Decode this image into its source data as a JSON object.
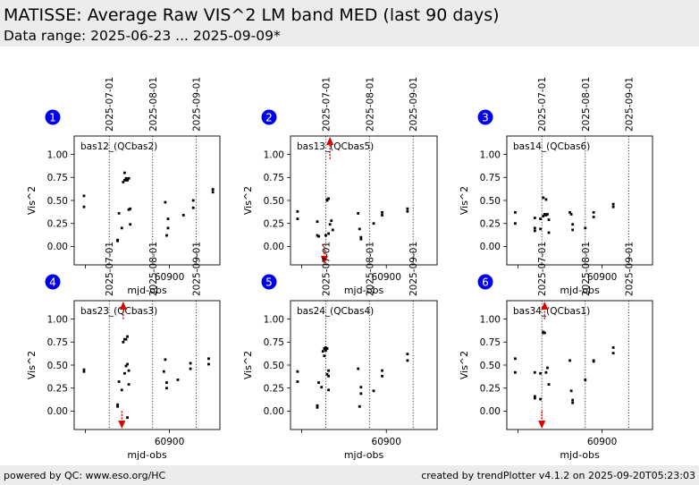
{
  "header": {
    "title": "MATISSE: Average Raw VIS^2 LM band MED (last 90 days)",
    "subtitle": "Data range: 2025-06-23 ... 2025-09-09*"
  },
  "footer": {
    "left": "powered by QC: www.eso.org/HC",
    "right": "created by trendPlotter v4.1.2 on 2025-09-20T05:23:03"
  },
  "colors": {
    "marker": "#0000ee",
    "point": "#000000",
    "arrow": "#dd0000",
    "background": "#ffffff",
    "band": "#ececec"
  },
  "chart_data": [
    {
      "type": "scatter",
      "panel_number": "1",
      "label": "bas12_(QCbas2)",
      "xlabel": "mjd-obs",
      "ylabel": "Vis^2",
      "xlim": [
        60832,
        60936
      ],
      "ylim": [
        -0.2,
        1.2
      ],
      "xticks": [
        60900
      ],
      "yticks": [
        0.0,
        0.25,
        0.5,
        0.75,
        1.0
      ],
      "yticklabels": [
        "0.00",
        "0.25",
        "0.50",
        "0.75",
        "1.00"
      ],
      "date_markers": [
        {
          "x": 60857,
          "label": "2025-07-01"
        },
        {
          "x": 60888,
          "label": "2025-08-01"
        },
        {
          "x": 60919,
          "label": "2025-09-01"
        }
      ],
      "grid": false,
      "points": [
        [
          60839,
          0.55
        ],
        [
          60839,
          0.43
        ],
        [
          60863,
          0.07
        ],
        [
          60863,
          0.06
        ],
        [
          60864,
          0.36
        ],
        [
          60866,
          0.2
        ],
        [
          60867,
          0.7
        ],
        [
          60868,
          0.72
        ],
        [
          60868,
          0.8
        ],
        [
          60869,
          0.74
        ],
        [
          60869,
          0.72
        ],
        [
          60870,
          0.73
        ],
        [
          60870,
          0.72
        ],
        [
          60871,
          0.74
        ],
        [
          60871,
          0.4
        ],
        [
          60872,
          0.41
        ],
        [
          60872,
          0.24
        ],
        [
          60897,
          0.48
        ],
        [
          60898,
          0.12
        ],
        [
          60899,
          0.2
        ],
        [
          60899,
          0.3
        ],
        [
          60910,
          0.34
        ],
        [
          60917,
          0.5
        ],
        [
          60917,
          0.42
        ],
        [
          60931,
          0.62
        ],
        [
          60931,
          0.59
        ]
      ],
      "out_of_range": []
    },
    {
      "type": "scatter",
      "panel_number": "2",
      "label": "bas13_(QCbas5)",
      "xlabel": "mjd-obs",
      "ylabel": "Vis^2",
      "xlim": [
        60832,
        60936
      ],
      "ylim": [
        -0.2,
        1.2
      ],
      "xticks": [
        60900
      ],
      "yticks": [
        0.0,
        0.25,
        0.5,
        0.75,
        1.0
      ],
      "yticklabels": [
        "0.00",
        "0.25",
        "0.50",
        "0.75",
        "1.00"
      ],
      "date_markers": [
        {
          "x": 60857,
          "label": "2025-07-01"
        },
        {
          "x": 60888,
          "label": "2025-08-01"
        },
        {
          "x": 60919,
          "label": "2025-09-01"
        }
      ],
      "grid": false,
      "points": [
        [
          60837,
          0.38
        ],
        [
          60837,
          0.3
        ],
        [
          60851,
          0.27
        ],
        [
          60851,
          0.12
        ],
        [
          60852,
          0.11
        ],
        [
          60857,
          0.12
        ],
        [
          60858,
          0.5
        ],
        [
          60858,
          0.51
        ],
        [
          60859,
          0.14
        ],
        [
          60859,
          0.52
        ],
        [
          60860,
          0.24
        ],
        [
          60861,
          0.28
        ],
        [
          60862,
          0.18
        ],
        [
          60880,
          0.36
        ],
        [
          60881,
          0.19
        ],
        [
          60882,
          0.1
        ],
        [
          60882,
          0.08
        ],
        [
          60891,
          0.25
        ],
        [
          60897,
          0.37
        ],
        [
          60897,
          0.34
        ],
        [
          60915,
          0.41
        ],
        [
          60915,
          0.38
        ]
      ],
      "out_of_range": [
        {
          "x": 60860,
          "from": 0.95,
          "direction": "up"
        },
        {
          "x": 60856,
          "from": 0.0,
          "direction": "down"
        }
      ]
    },
    {
      "type": "scatter",
      "panel_number": "3",
      "label": "bas14_(QCbas6)",
      "xlabel": "mjd-obs",
      "ylabel": "Vis^2",
      "xlim": [
        60832,
        60936
      ],
      "ylim": [
        -0.2,
        1.2
      ],
      "xticks": [
        60900
      ],
      "yticks": [
        0.0,
        0.25,
        0.5,
        0.75,
        1.0
      ],
      "yticklabels": [
        "0.00",
        "0.25",
        "0.50",
        "0.75",
        "1.00"
      ],
      "date_markers": [
        {
          "x": 60857,
          "label": "2025-07-01"
        },
        {
          "x": 60888,
          "label": "2025-08-01"
        },
        {
          "x": 60919,
          "label": "2025-09-01"
        }
      ],
      "grid": false,
      "points": [
        [
          60838,
          0.37
        ],
        [
          60838,
          0.25
        ],
        [
          60852,
          0.31
        ],
        [
          60852,
          0.2
        ],
        [
          60852,
          0.17
        ],
        [
          60856,
          0.3
        ],
        [
          60856,
          0.19
        ],
        [
          60858,
          0.33
        ],
        [
          60858,
          0.53
        ],
        [
          60859,
          0.35
        ],
        [
          60860,
          0.51
        ],
        [
          60860,
          0.34
        ],
        [
          60861,
          0.35
        ],
        [
          60862,
          0.29
        ],
        [
          60862,
          0.15
        ],
        [
          60877,
          0.37
        ],
        [
          60878,
          0.35
        ],
        [
          60879,
          0.24
        ],
        [
          60879,
          0.18
        ],
        [
          60888,
          0.2
        ],
        [
          60894,
          0.37
        ],
        [
          60894,
          0.32
        ],
        [
          60908,
          0.46
        ],
        [
          60908,
          0.43
        ]
      ],
      "out_of_range": []
    },
    {
      "type": "scatter",
      "panel_number": "4",
      "label": "bas23_(QCbas3)",
      "xlabel": "mjd-obs",
      "ylabel": "Vis^2",
      "xlim": [
        60832,
        60936
      ],
      "ylim": [
        -0.2,
        1.2
      ],
      "xticks": [
        60900
      ],
      "yticks": [
        0.0,
        0.25,
        0.5,
        0.75,
        1.0
      ],
      "yticklabels": [
        "0.00",
        "0.25",
        "0.50",
        "0.75",
        "1.00"
      ],
      "date_markers": [
        {
          "x": 60857,
          "label": "2025-07-01"
        },
        {
          "x": 60888,
          "label": "2025-08-01"
        },
        {
          "x": 60919,
          "label": "2025-09-01"
        }
      ],
      "grid": false,
      "points": [
        [
          60839,
          0.45
        ],
        [
          60839,
          0.43
        ],
        [
          60863,
          0.07
        ],
        [
          60863,
          0.05
        ],
        [
          60864,
          0.32
        ],
        [
          60866,
          0.23
        ],
        [
          60867,
          0.75
        ],
        [
          60868,
          0.41
        ],
        [
          60868,
          0.78
        ],
        [
          60869,
          0.78
        ],
        [
          60869,
          0.49
        ],
        [
          60870,
          0.81
        ],
        [
          60870,
          0.51
        ],
        [
          60870,
          -0.07
        ],
        [
          60871,
          0.44
        ],
        [
          60871,
          0.29
        ],
        [
          60896,
          0.43
        ],
        [
          60897,
          0.56
        ],
        [
          60898,
          0.31
        ],
        [
          60898,
          0.25
        ],
        [
          60906,
          0.34
        ],
        [
          60915,
          0.52
        ],
        [
          60915,
          0.46
        ],
        [
          60928,
          0.57
        ],
        [
          60928,
          0.51
        ]
      ],
      "out_of_range": [
        {
          "x": 60867,
          "from": 1.0,
          "direction": "up"
        },
        {
          "x": 60866,
          "from": 0.0,
          "direction": "down"
        }
      ]
    },
    {
      "type": "scatter",
      "panel_number": "5",
      "label": "bas24_(QCbas4)",
      "xlabel": "mjd-obs",
      "ylabel": "Vis^2",
      "xlim": [
        60832,
        60936
      ],
      "ylim": [
        -0.2,
        1.2
      ],
      "xticks": [
        60900
      ],
      "yticks": [
        0.0,
        0.25,
        0.5,
        0.75,
        1.0
      ],
      "yticklabels": [
        "0.00",
        "0.25",
        "0.50",
        "0.75",
        "1.00"
      ],
      "date_markers": [
        {
          "x": 60857,
          "label": "2025-07-01"
        },
        {
          "x": 60888,
          "label": "2025-08-01"
        },
        {
          "x": 60919,
          "label": "2025-09-01"
        }
      ],
      "grid": false,
      "points": [
        [
          60837,
          0.43
        ],
        [
          60837,
          0.32
        ],
        [
          60851,
          0.06
        ],
        [
          60851,
          0.04
        ],
        [
          60852,
          0.31
        ],
        [
          60854,
          0.26
        ],
        [
          60855,
          0.65
        ],
        [
          60856,
          0.68
        ],
        [
          60856,
          0.6
        ],
        [
          60857,
          0.69
        ],
        [
          60857,
          0.66
        ],
        [
          60858,
          0.68
        ],
        [
          60858,
          0.4
        ],
        [
          60859,
          0.44
        ],
        [
          60859,
          0.38
        ],
        [
          60859,
          0.23
        ],
        [
          60880,
          0.46
        ],
        [
          60881,
          0.05
        ],
        [
          60882,
          0.26
        ],
        [
          60882,
          0.19
        ],
        [
          60891,
          0.22
        ],
        [
          60897,
          0.44
        ],
        [
          60897,
          0.38
        ],
        [
          60915,
          0.62
        ],
        [
          60915,
          0.55
        ]
      ],
      "out_of_range": []
    },
    {
      "type": "scatter",
      "panel_number": "6",
      "label": "bas34_(QCbas1)",
      "xlabel": "mjd-obs",
      "ylabel": "Vis^2",
      "xlim": [
        60832,
        60936
      ],
      "ylim": [
        -0.2,
        1.2
      ],
      "xticks": [
        60900
      ],
      "yticks": [
        0.0,
        0.25,
        0.5,
        0.75,
        1.0
      ],
      "yticklabels": [
        "0.00",
        "0.25",
        "0.50",
        "0.75",
        "1.00"
      ],
      "date_markers": [
        {
          "x": 60857,
          "label": "2025-07-01"
        },
        {
          "x": 60888,
          "label": "2025-08-01"
        },
        {
          "x": 60919,
          "label": "2025-09-01"
        }
      ],
      "grid": false,
      "points": [
        [
          60838,
          0.57
        ],
        [
          60838,
          0.42
        ],
        [
          60852,
          0.42
        ],
        [
          60852,
          0.16
        ],
        [
          60852,
          0.14
        ],
        [
          60856,
          0.13
        ],
        [
          60856,
          0.41
        ],
        [
          60858,
          0.85
        ],
        [
          60858,
          0.86
        ],
        [
          60859,
          0.85
        ],
        [
          60860,
          0.42
        ],
        [
          60861,
          0.47
        ],
        [
          60862,
          0.29
        ],
        [
          60877,
          0.55
        ],
        [
          60878,
          0.22
        ],
        [
          60879,
          0.12
        ],
        [
          60879,
          0.09
        ],
        [
          60888,
          0.34
        ],
        [
          60894,
          0.55
        ],
        [
          60894,
          0.54
        ],
        [
          60908,
          0.69
        ],
        [
          60908,
          0.63
        ]
      ],
      "out_of_range": [
        {
          "x": 60859,
          "from": 1.0,
          "direction": "up"
        },
        {
          "x": 60857,
          "from": 0.0,
          "direction": "down"
        }
      ]
    }
  ]
}
